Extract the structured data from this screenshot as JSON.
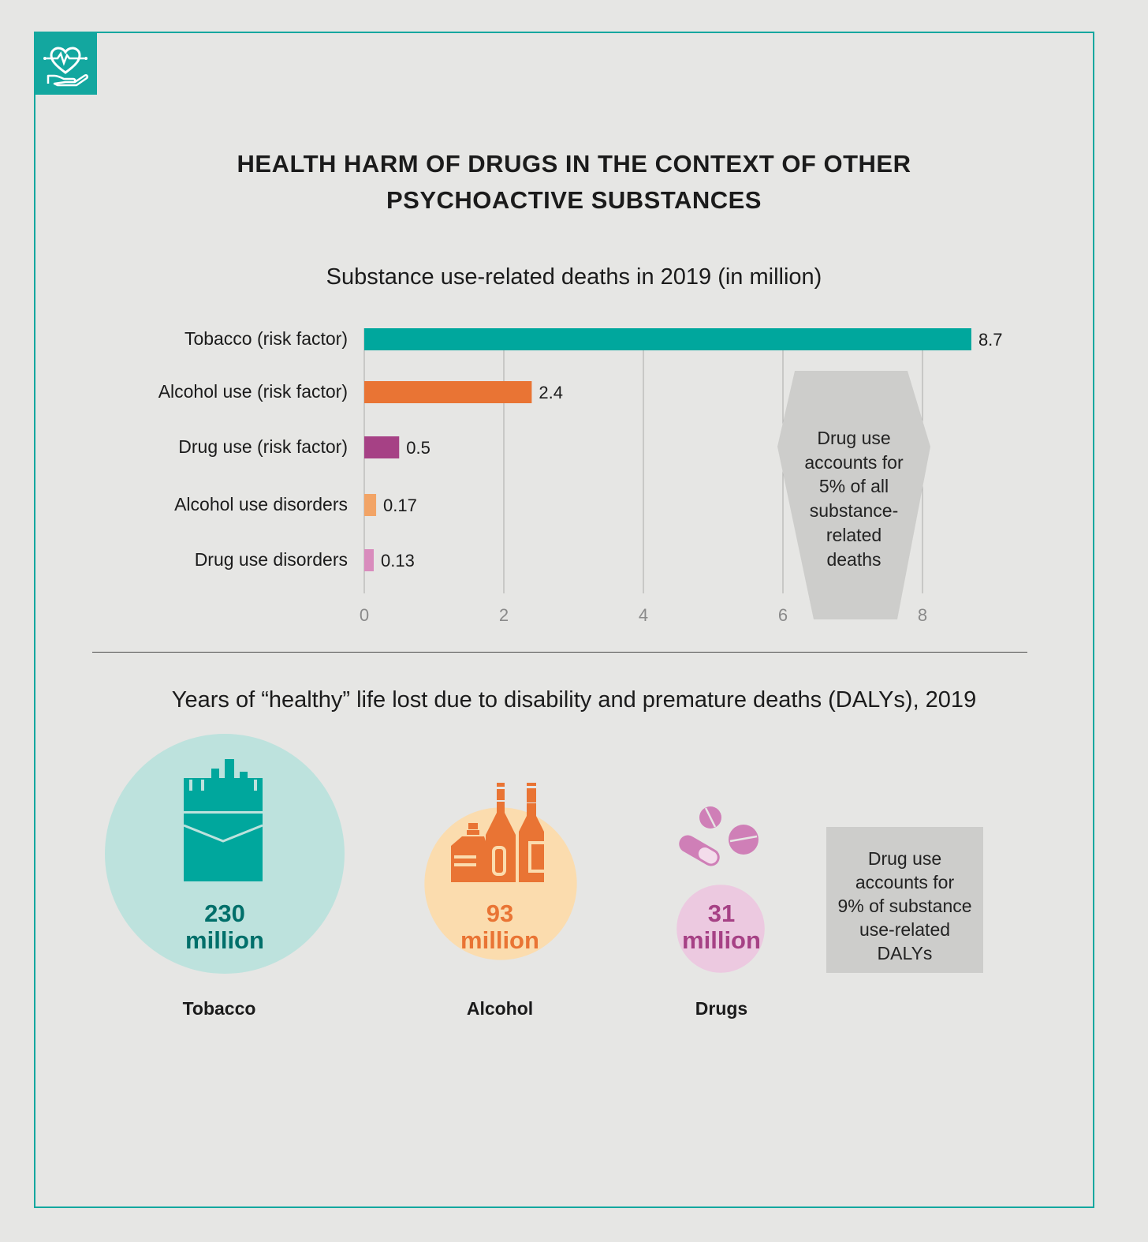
{
  "title_line1": "HEALTH HARM OF DRUGS IN THE CONTEXT OF OTHER",
  "title_line2": "PSYCHOACTIVE SUBSTANCES",
  "colors": {
    "frame": "#13a79f",
    "tobacco": "#00a79d",
    "alcohol": "#e97434",
    "drug": "#a64185",
    "alcohol_disorders": "#f2a466",
    "drug_disorders": "#d98cbd",
    "callout": "#cdcdcb"
  },
  "badge_icon": "heart-in-hand-icon",
  "chart_data": [
    {
      "type": "bar",
      "orientation": "horizontal",
      "title": "Substance use-related deaths in 2019 (in million)",
      "categories": [
        "Tobacco (risk factor)",
        "Alcohol use (risk factor)",
        "Drug use (risk factor)",
        "Alcohol use disorders",
        "Drug use disorders"
      ],
      "values": [
        8.7,
        2.4,
        0.5,
        0.17,
        0.13
      ],
      "value_labels": [
        "8.7",
        "2.4",
        "0.5",
        "0.17",
        "0.13"
      ],
      "xlim": [
        0,
        8.7
      ],
      "xticks": [
        "0",
        "2",
        "4",
        "6",
        "8"
      ],
      "grid": true,
      "annotation": [
        "Drug use",
        "accounts for",
        "5% of all",
        "substance-",
        "related",
        "deaths"
      ]
    },
    {
      "type": "bubble",
      "title": "Years of “healthy” life lost due to disability and premature deaths (DALYs), 2019",
      "categories": [
        "Tobacco",
        "Alcohol",
        "Drugs"
      ],
      "values": [
        230,
        93,
        31
      ],
      "unit": "million",
      "value_labels": [
        "230",
        "93",
        "31"
      ],
      "icons": [
        "cigarette-pack-icon",
        "bottles-icon",
        "pills-icon"
      ],
      "annotation": [
        "Drug use",
        "accounts for",
        "9% of substance",
        "use-related",
        "DALYs"
      ]
    }
  ]
}
